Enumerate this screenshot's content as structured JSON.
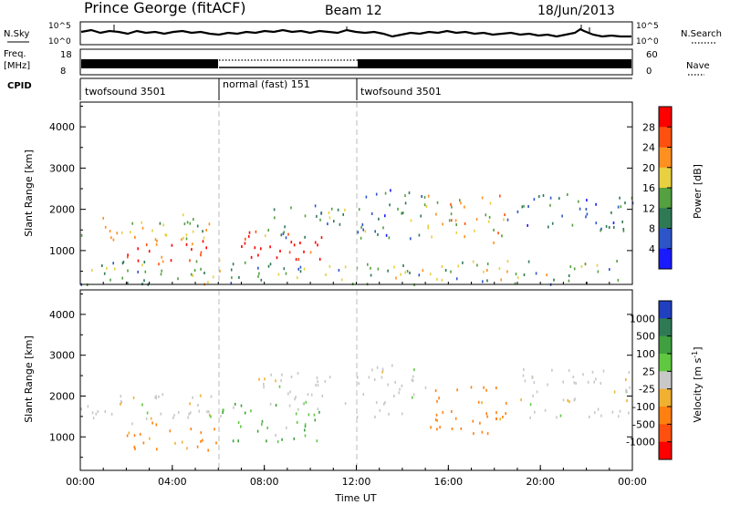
{
  "header": {
    "station": "Prince George (fitACF)",
    "beam": "Beam 12",
    "date": "18/Jun/2013"
  },
  "strip_labels": {
    "nsky": "N.Sky",
    "freq_line1": "Freq.",
    "freq_line2": "[MHz]",
    "cpid": "CPID",
    "nsearch": "N.Search",
    "nave": "Nave"
  },
  "strip_ticks": {
    "nsky_left": [
      "10^5",
      "10^0"
    ],
    "nsky_right": [
      "10^5",
      "10^0"
    ],
    "freq_left": [
      "18",
      "8"
    ],
    "nave_right": [
      "60",
      "0"
    ]
  },
  "cpid_segments": [
    {
      "start_hour": 0,
      "end_hour": 6,
      "label": "twofsound 3501"
    },
    {
      "start_hour": 6,
      "end_hour": 12,
      "label": "normal (fast) 151"
    },
    {
      "start_hour": 12,
      "end_hour": 24,
      "label": "twofsound 3501"
    }
  ],
  "chart_data": [
    {
      "type": "heatmap",
      "panel": "power",
      "ylabel": "Slant Range [km]",
      "xlabel": "",
      "ylim": [
        180,
        4600
      ],
      "xlim_hours": [
        0,
        24
      ],
      "yticks": [
        1000,
        2000,
        3000,
        4000
      ],
      "colorbar": {
        "label": "Power [dB]",
        "ticks": [
          "4",
          "8",
          "12",
          "16",
          "20",
          "24",
          "28"
        ],
        "colors": [
          "#1a1aff",
          "#2d55c8",
          "#2f7a55",
          "#55a040",
          "#e8d040",
          "#ff9020",
          "#ff5010",
          "#ff0000"
        ]
      },
      "scatter_regions": [
        {
          "x0": 0,
          "x1": 5.6,
          "y0": 1200,
          "y1": 1900,
          "value": 18
        },
        {
          "x0": 2.0,
          "x1": 6.0,
          "y0": 700,
          "y1": 1400,
          "value": 26
        },
        {
          "x0": 6.0,
          "x1": 10.5,
          "y0": 800,
          "y1": 1500,
          "value": 30
        },
        {
          "x0": 8.0,
          "x1": 11.5,
          "y0": 1300,
          "y1": 2200,
          "value": 12
        },
        {
          "x0": 12.0,
          "x1": 15.0,
          "y0": 1300,
          "y1": 2600,
          "value": 10
        },
        {
          "x0": 15.0,
          "x1": 18.5,
          "y0": 1200,
          "y1": 2400,
          "value": 20
        },
        {
          "x0": 18.5,
          "x1": 24.0,
          "y0": 1500,
          "y1": 2400,
          "value": 8
        },
        {
          "x0": 0,
          "x1": 24.0,
          "y0": 200,
          "y1": 800,
          "value": 14
        }
      ]
    },
    {
      "type": "heatmap",
      "panel": "velocity",
      "ylabel": "Slant Range [km]",
      "xlabel": "Time UT",
      "ylim": [
        180,
        4600
      ],
      "xlim_hours": [
        0,
        24
      ],
      "yticks": [
        1000,
        2000,
        3000,
        4000
      ],
      "xtick_labels": [
        "00:00",
        "04:00",
        "08:00",
        "12:00",
        "16:00",
        "20:00",
        "00:00"
      ],
      "colorbar": {
        "label": "Velocity [m s^-1]",
        "ticks": [
          "1000",
          "500",
          "100",
          "25",
          "-25",
          "-100",
          "-500",
          "-1000"
        ],
        "colors": [
          "#2040c0",
          "#2f7a55",
          "#40a040",
          "#60c840",
          "#c8c8c8",
          "#f0b030",
          "#ff8010",
          "#ff5010",
          "#ff0000"
        ]
      },
      "scatter_regions": [
        {
          "x0": 0,
          "x1": 6.0,
          "y0": 1300,
          "y1": 2100,
          "value": 0
        },
        {
          "x0": 2.0,
          "x1": 6.0,
          "y0": 700,
          "y1": 1400,
          "value": -150
        },
        {
          "x0": 6.0,
          "x1": 10.5,
          "y0": 900,
          "y1": 1900,
          "value": 80
        },
        {
          "x0": 7.5,
          "x1": 11.5,
          "y0": 1700,
          "y1": 2600,
          "value": 0
        },
        {
          "x0": 12.0,
          "x1": 15.0,
          "y0": 1500,
          "y1": 2800,
          "value": 0
        },
        {
          "x0": 15.0,
          "x1": 18.5,
          "y0": 1100,
          "y1": 2300,
          "value": -200
        },
        {
          "x0": 19.0,
          "x1": 24.0,
          "y0": 1500,
          "y1": 2700,
          "value": 0
        }
      ]
    }
  ]
}
